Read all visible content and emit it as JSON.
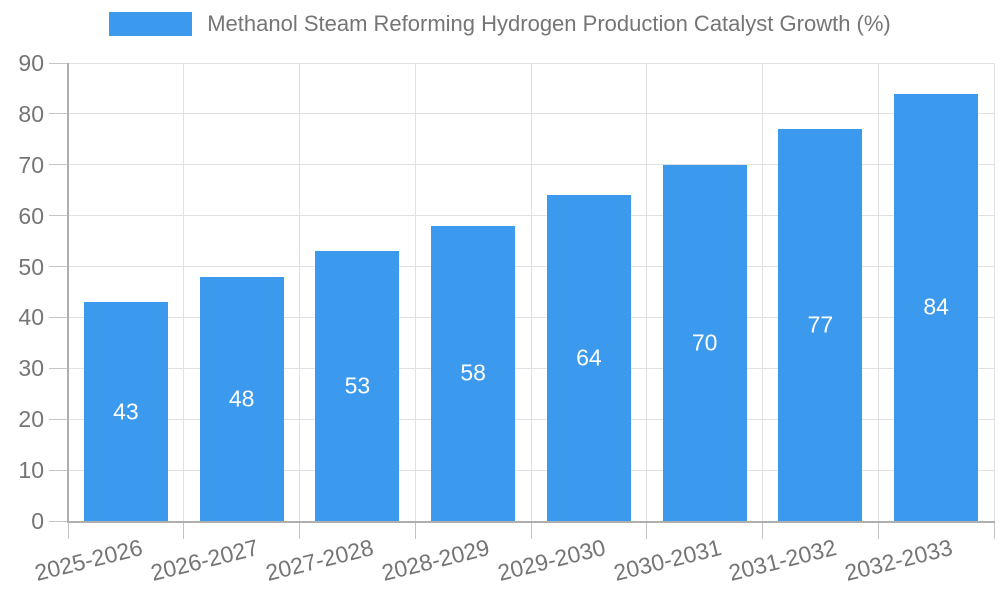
{
  "chart_data": {
    "type": "bar",
    "title": "Methanol Steam Reforming Hydrogen Production Catalyst Growth (%)",
    "legend": [
      "Methanol Steam Reforming Hydrogen Production Catalyst Growth (%)"
    ],
    "legend_position": "top-center",
    "categories": [
      "2025-2026",
      "2026-2027",
      "2027-2028",
      "2028-2029",
      "2029-2030",
      "2030-2031",
      "2031-2032",
      "2032-2033"
    ],
    "values": [
      43,
      48,
      53,
      58,
      64,
      70,
      77,
      84
    ],
    "xlabel": "",
    "ylabel": "",
    "ylim": [
      0,
      90
    ],
    "y_ticks": [
      0,
      10,
      20,
      30,
      40,
      50,
      60,
      70,
      80,
      90
    ],
    "grid": "horizontal and vertical gridlines",
    "value_label_position": "inside-center",
    "x_label_rotation_deg": -14,
    "colors": {
      "bar": "#3B99EE",
      "grid": "#E1E1E1",
      "axis": "#AFAFAF",
      "tick": "#C4C4C4",
      "text": "#757575",
      "value_label": "#FFFFFF",
      "background": "#FFFFFF"
    }
  }
}
